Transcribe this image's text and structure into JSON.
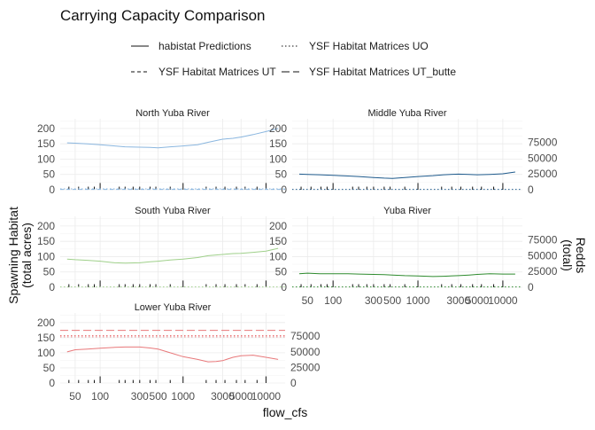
{
  "chart_data": {
    "type": "line",
    "title": "Carrying Capacity Comparison",
    "xlabel": "flow_cfs",
    "ylabel_left": [
      "Spawning Habitat",
      "(total acres)"
    ],
    "ylabel_right": [
      "Redds",
      "(total)"
    ],
    "x_scale": "log10",
    "xlim": [
      33,
      17000
    ],
    "x_ticks": [
      50,
      100,
      300,
      500,
      1000,
      3000,
      5000,
      10000
    ],
    "x_tick_labels": [
      "50",
      "100",
      "300",
      "500",
      "1000",
      "3000",
      "5000",
      "10000"
    ],
    "ylim_left": [
      0,
      220
    ],
    "y_ticks_left": [
      0,
      50,
      100,
      150,
      200
    ],
    "y_ticks_right_values": [
      0,
      25000,
      50000,
      75000
    ],
    "y_tick_labels_right": [
      "0",
      "25000",
      "50000",
      "75000"
    ],
    "grid": true,
    "legend_position": "top",
    "legend": [
      {
        "name": "habistat Predictions",
        "dash": "solid"
      },
      {
        "name": "YSF Habitat Matrices UO",
        "dash": "dotted"
      },
      {
        "name": "YSF Habitat Matrices UT",
        "dash": "dashed"
      },
      {
        "name": "YSF Habitat Matrices UT_butte",
        "dash": "longdash"
      }
    ],
    "panels": [
      {
        "name": "North Yuba River",
        "color": "#8ab6df",
        "x": [
          40,
          50,
          70,
          100,
          150,
          200,
          300,
          400,
          500,
          700,
          1000,
          1500,
          2000,
          3000,
          4000,
          5000,
          7000,
          10000,
          14000
        ],
        "y": [
          153,
          152,
          150,
          147,
          143,
          140,
          139,
          138,
          137,
          140,
          143,
          147,
          155,
          165,
          168,
          172,
          180,
          190,
          200
        ],
        "overlays": [
          {
            "dash": "dotted",
            "y": 3
          },
          {
            "dash": "dashed",
            "y": 1
          }
        ],
        "rug": [
          [
            42,
            10
          ],
          [
            55,
            10
          ],
          [
            72,
            10
          ],
          [
            85,
            10
          ],
          [
            100,
            22
          ],
          [
            170,
            10
          ],
          [
            200,
            10
          ],
          [
            250,
            10
          ],
          [
            300,
            10
          ],
          [
            400,
            10
          ],
          [
            470,
            10
          ],
          [
            700,
            10
          ],
          [
            1000,
            22
          ],
          [
            1900,
            10
          ],
          [
            2500,
            10
          ],
          [
            3200,
            10
          ],
          [
            4400,
            10
          ],
          [
            5600,
            10
          ],
          [
            7800,
            10
          ],
          [
            10000,
            22
          ]
        ]
      },
      {
        "name": "Middle Yuba River",
        "color": "#1e5a8c",
        "x": [
          40,
          50,
          70,
          100,
          150,
          200,
          300,
          400,
          500,
          700,
          1000,
          1500,
          2000,
          3000,
          4000,
          5000,
          7000,
          10000,
          14000
        ],
        "y": [
          51,
          50,
          49,
          47,
          45,
          43,
          40,
          38,
          37,
          40,
          43,
          46,
          49,
          51,
          50,
          49,
          50,
          52,
          58
        ],
        "overlays": [
          {
            "dash": "dotted",
            "y": 1
          }
        ],
        "rug": [
          [
            42,
            10
          ],
          [
            55,
            10
          ],
          [
            72,
            10
          ],
          [
            85,
            10
          ],
          [
            100,
            22
          ],
          [
            170,
            10
          ],
          [
            200,
            10
          ],
          [
            250,
            10
          ],
          [
            300,
            10
          ],
          [
            400,
            10
          ],
          [
            470,
            10
          ],
          [
            700,
            10
          ],
          [
            1000,
            22
          ],
          [
            1900,
            10
          ],
          [
            2500,
            10
          ],
          [
            3200,
            10
          ],
          [
            4400,
            10
          ],
          [
            5600,
            10
          ],
          [
            7800,
            10
          ],
          [
            10000,
            22
          ]
        ]
      },
      {
        "name": "South Yuba River",
        "color": "#9fd08a",
        "x": [
          40,
          50,
          70,
          100,
          150,
          200,
          300,
          400,
          500,
          700,
          1000,
          1500,
          2000,
          3000,
          4000,
          5000,
          7000,
          10000,
          14000
        ],
        "y": [
          92,
          90,
          88,
          85,
          80,
          79,
          80,
          83,
          85,
          89,
          92,
          97,
          103,
          107,
          110,
          111,
          114,
          118,
          127
        ],
        "overlays": [
          {
            "dash": "dotted",
            "y": 1
          }
        ],
        "rug": [
          [
            42,
            10
          ],
          [
            55,
            10
          ],
          [
            72,
            10
          ],
          [
            85,
            10
          ],
          [
            100,
            22
          ],
          [
            170,
            10
          ],
          [
            200,
            10
          ],
          [
            250,
            10
          ],
          [
            300,
            10
          ],
          [
            400,
            10
          ],
          [
            470,
            10
          ],
          [
            700,
            10
          ],
          [
            1000,
            22
          ],
          [
            1900,
            10
          ],
          [
            2500,
            10
          ],
          [
            3200,
            10
          ],
          [
            4400,
            10
          ],
          [
            5600,
            10
          ],
          [
            7800,
            10
          ],
          [
            10000,
            22
          ]
        ]
      },
      {
        "name": "Yuba River",
        "color": "#2e8b2e",
        "x": [
          40,
          50,
          70,
          100,
          150,
          200,
          300,
          400,
          500,
          700,
          1000,
          1500,
          2000,
          3000,
          4000,
          5000,
          7000,
          10000,
          14000
        ],
        "y": [
          44,
          46,
          44,
          44,
          44,
          43,
          42,
          41,
          40,
          38,
          37,
          35,
          36,
          38,
          40,
          42,
          44,
          43,
          43
        ],
        "overlays": [
          {
            "dash": "dotted",
            "y": 1
          }
        ],
        "rug": [
          [
            42,
            10
          ],
          [
            55,
            10
          ],
          [
            72,
            10
          ],
          [
            85,
            10
          ],
          [
            100,
            22
          ],
          [
            170,
            10
          ],
          [
            200,
            10
          ],
          [
            250,
            10
          ],
          [
            300,
            10
          ],
          [
            400,
            10
          ],
          [
            470,
            10
          ],
          [
            700,
            10
          ],
          [
            1000,
            22
          ],
          [
            1900,
            10
          ],
          [
            2500,
            10
          ],
          [
            3200,
            10
          ],
          [
            4400,
            10
          ],
          [
            5600,
            10
          ],
          [
            7800,
            10
          ],
          [
            10000,
            22
          ]
        ]
      },
      {
        "name": "Lower Yuba River",
        "color": "#e8787a",
        "x": [
          40,
          50,
          70,
          100,
          150,
          200,
          300,
          400,
          500,
          700,
          1000,
          1500,
          2000,
          2500,
          3000,
          4000,
          5000,
          7000,
          10000,
          14000
        ],
        "y": [
          103,
          110,
          112,
          115,
          118,
          119,
          119,
          116,
          112,
          100,
          87,
          78,
          70,
          71,
          74,
          85,
          90,
          92,
          85,
          78
        ],
        "overlays": [
          {
            "dash": "longdash",
            "y": 174
          },
          {
            "dash": "dotted",
            "y": 157
          },
          {
            "dash": "dotted",
            "y": 153
          }
        ],
        "rug": [
          [
            42,
            10
          ],
          [
            55,
            10
          ],
          [
            72,
            10
          ],
          [
            85,
            10
          ],
          [
            100,
            22
          ],
          [
            170,
            10
          ],
          [
            200,
            10
          ],
          [
            250,
            10
          ],
          [
            300,
            10
          ],
          [
            400,
            10
          ],
          [
            470,
            10
          ],
          [
            700,
            10
          ],
          [
            1000,
            22
          ],
          [
            1900,
            10
          ],
          [
            2500,
            10
          ],
          [
            3200,
            10
          ],
          [
            4400,
            10
          ],
          [
            5600,
            10
          ],
          [
            7800,
            10
          ],
          [
            10000,
            22
          ]
        ]
      }
    ]
  }
}
